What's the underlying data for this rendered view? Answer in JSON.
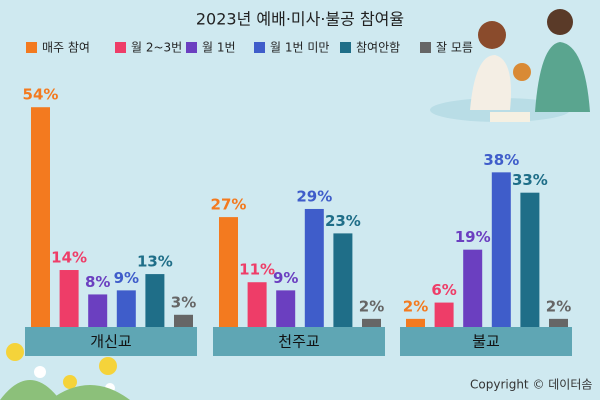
{
  "chart_data": {
    "type": "bar",
    "title": "2023년 예배·미사·불공 참여율",
    "categories": [
      "개신교",
      "천주교",
      "불교"
    ],
    "series": [
      {
        "name": "매주 참여",
        "color": "#f37a1f",
        "values": [
          54,
          27,
          2
        ],
        "value_labels": [
          "54%",
          "27%",
          "2%"
        ]
      },
      {
        "name": "월 2~3번",
        "color": "#ee3d68",
        "values": [
          14,
          11,
          6
        ],
        "value_labels": [
          "14%",
          "11%",
          "6%"
        ]
      },
      {
        "name": "월 1번",
        "color": "#6b3fc0",
        "values": [
          8,
          9,
          19
        ],
        "value_labels": [
          "8%",
          "9%",
          "19%"
        ]
      },
      {
        "name": "월 1번 미만",
        "color": "#3f5dca",
        "values": [
          9,
          29,
          38
        ],
        "value_labels": [
          "9%",
          "29%",
          "38%"
        ]
      },
      {
        "name": "참여안함",
        "color": "#1f6e88",
        "values": [
          13,
          23,
          33
        ],
        "value_labels": [
          "13%",
          "23%",
          "33%"
        ]
      },
      {
        "name": "잘 모름",
        "color": "#666666",
        "values": [
          3,
          2,
          2
        ],
        "value_labels": [
          "3%",
          "2%",
          "2%"
        ]
      }
    ],
    "copyright": "Copyright © 데이터솜"
  }
}
